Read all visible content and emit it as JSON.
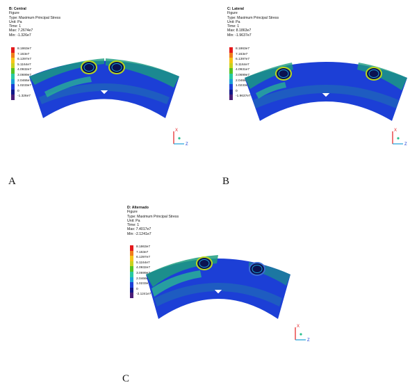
{
  "legend_colors": [
    "#e41a1c",
    "#f07d1a",
    "#f5c518",
    "#c8d21e",
    "#54c224",
    "#28c9a1",
    "#1aa0d8",
    "#1c3fd6",
    "#12188a",
    "#4b1e78"
  ],
  "panels": [
    {
      "id": "A",
      "title": "B: Central",
      "lines": [
        "Figure",
        "Type: Maximum Principal Stress",
        "Unit: Pa",
        "Time: 1",
        "Max: 7.2674e7",
        "Min: -1.326e7"
      ],
      "legend": [
        "8.1863e7",
        "7.163e7",
        "6.1397e7",
        "5.1164e7",
        "4.0932e7",
        "3.0699e7",
        "2.0466e7",
        "1.0233e7",
        "0",
        "-1.326e7"
      ],
      "caption": "A"
    },
    {
      "id": "B",
      "title": "C: Lateral",
      "lines": [
        "Figure",
        "Type: Maximum Principal Stress",
        "Unit: Pa",
        "Time: 1",
        "Max: 8.1863e7",
        "Min: -1.9637e7"
      ],
      "legend": [
        "8.1863e7",
        "7.163e7",
        "6.1397e7",
        "5.1164e7",
        "4.0931e7",
        "3.0699e7",
        "2.0466e7",
        "1.0233e7",
        "0",
        "-1.9637e7"
      ],
      "caption": "B"
    },
    {
      "id": "C",
      "title": "D: Alternado",
      "lines": [
        "Figure",
        "Type: Maximum Principal Stress",
        "Unit: Pa",
        "Time: 1",
        "Max: 7.4017e7",
        "Min: -2.1241e7"
      ],
      "legend": [
        "8.1863e7",
        "7.163e7",
        "6.1397e7",
        "5.1164e7",
        "4.0932e7",
        "3.0699e7",
        "2.0466e7",
        "1.0233e7",
        "0",
        "-2.1241e7"
      ],
      "caption": "C"
    }
  ],
  "axis_labels": {
    "x": "X",
    "z": "Z"
  }
}
